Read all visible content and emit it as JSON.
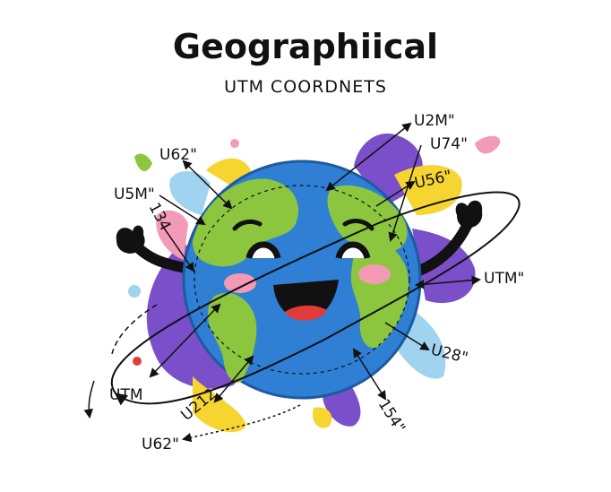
{
  "header": {
    "title": "Geographiical",
    "subtitle": "UTM COORDNETS"
  },
  "labels": {
    "u62_top": "U62\"",
    "u5m": "U5M\"",
    "n134": "134",
    "u2m": "U2M\"",
    "u74": "U74\"",
    "u56": "U56\"",
    "utm_right": "UTM\"",
    "u28": "U28\"",
    "n154": "154\"",
    "u212": "U212",
    "utm_left": "UTM",
    "u62_bottom": "U62\""
  },
  "colors": {
    "ocean": "#2f7fd4",
    "land": "#8cc63f",
    "purple": "#7b4fc9",
    "yellow": "#f7d530",
    "pink": "#f29ab6",
    "lightblue": "#9fd3f0",
    "mouth": "#d8262a"
  }
}
